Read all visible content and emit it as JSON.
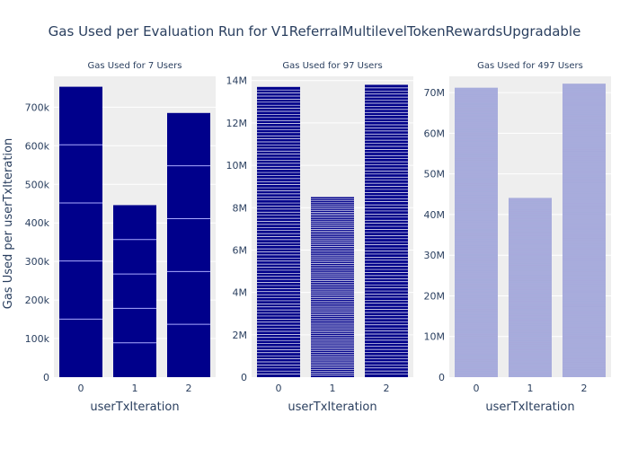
{
  "chart_data": {
    "type": "bar",
    "title": "Gas Used per Evaluation Run for V1ReferralMultilevelTokenRewardsUpgradable",
    "ylabel": "Gas Used per userTxIteration",
    "panels": [
      {
        "subtitle": "Gas Used for 7 Users",
        "xlabel": "userTxIteration",
        "categories": [
          "0",
          "1",
          "2"
        ],
        "values": [
          753000,
          446000,
          685000
        ],
        "segments": 5,
        "ylim": [
          0,
          780000
        ],
        "yticks": [
          0,
          100000,
          200000,
          300000,
          400000,
          500000,
          600000,
          700000
        ],
        "yticklabels": [
          "0",
          "100k",
          "200k",
          "300k",
          "400k",
          "500k",
          "600k",
          "700k"
        ],
        "color": "#00008b",
        "line_color": "#aaaaff"
      },
      {
        "subtitle": "Gas Used for 97 Users",
        "xlabel": "userTxIteration",
        "categories": [
          "0",
          "1",
          "2"
        ],
        "values": [
          13700000,
          8500000,
          13800000
        ],
        "segments": 95,
        "ylim": [
          0,
          14200000
        ],
        "yticks": [
          0,
          2000000,
          4000000,
          6000000,
          8000000,
          10000000,
          12000000,
          14000000
        ],
        "yticklabels": [
          "0",
          "2M",
          "4M",
          "6M",
          "8M",
          "10M",
          "12M",
          "14M"
        ],
        "color": "#00008b",
        "line_color": "#ffffff"
      },
      {
        "subtitle": "Gas Used for 497 Users",
        "xlabel": "userTxIteration",
        "categories": [
          "0",
          "1",
          "2"
        ],
        "values": [
          71200000,
          44100000,
          72200000
        ],
        "segments": 495,
        "ylim": [
          0,
          74000000
        ],
        "yticks": [
          0,
          10000000,
          20000000,
          30000000,
          40000000,
          50000000,
          60000000,
          70000000
        ],
        "yticklabels": [
          "0",
          "10M",
          "20M",
          "30M",
          "40M",
          "50M",
          "60M",
          "70M"
        ],
        "color": "#a8acdc",
        "line_color": "#a8acdc"
      }
    ]
  }
}
